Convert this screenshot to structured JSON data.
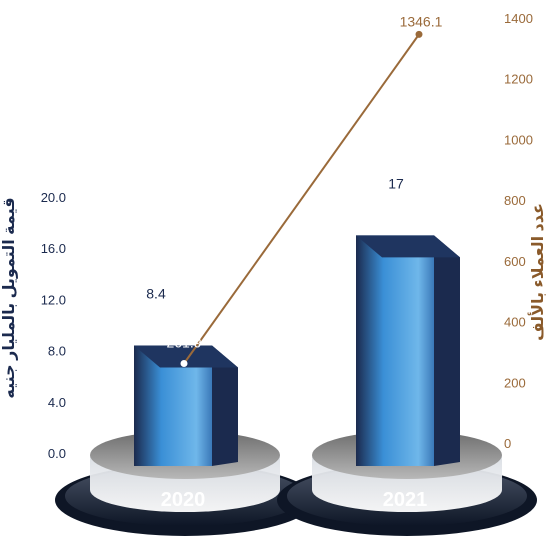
{
  "chart_data": {
    "type": "bar",
    "categories": [
      "2020",
      "2021"
    ],
    "series": [
      {
        "values": [
          8.4,
          17
        ],
        "axis": "left",
        "kind": "bar"
      },
      {
        "values": [
          261.9,
          1346.1
        ],
        "axis": "right",
        "kind": "line"
      }
    ],
    "left_axis": {
      "label": "قيمة التمويل بالمليار جنيه",
      "ticks": [
        "0.0",
        "4.0",
        "8.0",
        "12.0",
        "16.0",
        "20.0"
      ],
      "range": [
        0,
        20
      ]
    },
    "right_axis": {
      "label": "عدد العملاء بالألف",
      "ticks": [
        "0",
        "200",
        "400",
        "600",
        "800",
        "1000",
        "1200",
        "1400"
      ],
      "range": [
        0,
        1400
      ]
    },
    "bar_labels": [
      "8.4",
      "17"
    ],
    "line_labels": [
      "261.9",
      "1346.1"
    ],
    "grid": false,
    "colors": {
      "bar_front": "#3a8fd6",
      "bar_side": "#1b2a4e",
      "line": "#9a6a3a",
      "base": "#1b2438"
    }
  }
}
